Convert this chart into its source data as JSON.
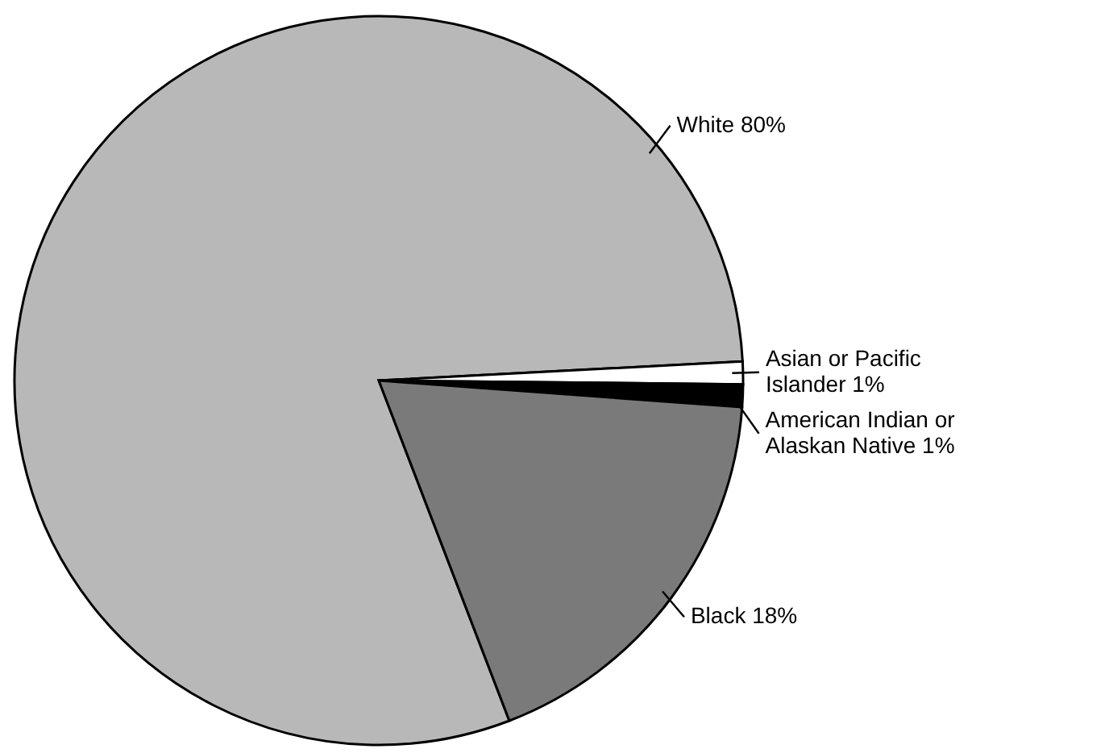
{
  "chart_data": {
    "type": "pie",
    "categories": [
      "White",
      "Asian or Pacific Islander",
      "American Indian or Alaskan Native",
      "Black"
    ],
    "values": [
      80,
      1,
      1,
      18
    ],
    "value_labels": [
      "80%",
      "1%",
      "1%",
      "18%"
    ],
    "colors": [
      "#b8b8b8",
      "#ffffff",
      "#000000",
      "#7a7a7a"
    ]
  }
}
